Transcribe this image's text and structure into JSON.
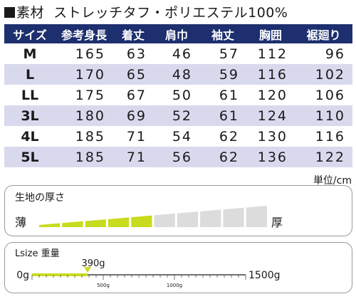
{
  "title": {
    "prefix": "素材",
    "material": "ストレッチタフ・ポリエステル100%"
  },
  "size_table": {
    "headers": [
      "サイズ",
      "参考身長",
      "着丈",
      "肩巾",
      "袖丈",
      "胸囲",
      "裾廻り"
    ],
    "rows": [
      [
        "M",
        "165",
        "63",
        "46",
        "57",
        "112",
        "96"
      ],
      [
        "L",
        "170",
        "65",
        "48",
        "59",
        "116",
        "102"
      ],
      [
        "LL",
        "175",
        "67",
        "50",
        "61",
        "120",
        "106"
      ],
      [
        "3L",
        "180",
        "69",
        "52",
        "61",
        "124",
        "110"
      ],
      [
        "4L",
        "185",
        "71",
        "54",
        "62",
        "130",
        "116"
      ],
      [
        "5L",
        "185",
        "71",
        "56",
        "62",
        "136",
        "122"
      ]
    ],
    "unit": "単位/cm"
  },
  "thickness": {
    "label": "生地の厚さ",
    "thin_label": "薄",
    "thick_label": "厚",
    "total_segments": 10,
    "filled_segments": 5,
    "fill_color": "#c8dc1e",
    "empty_color": "#dcdcdc"
  },
  "weight": {
    "label": "Lsize 重量",
    "value": 390,
    "value_label": "390g",
    "min_label": "0g",
    "max_label": "1500g",
    "ticks": [
      {
        "value": 500,
        "label": "500g"
      },
      {
        "value": 1000,
        "label": "1000g"
      }
    ],
    "min": 0,
    "max": 1500,
    "fill_color": "#c8dc1e"
  }
}
